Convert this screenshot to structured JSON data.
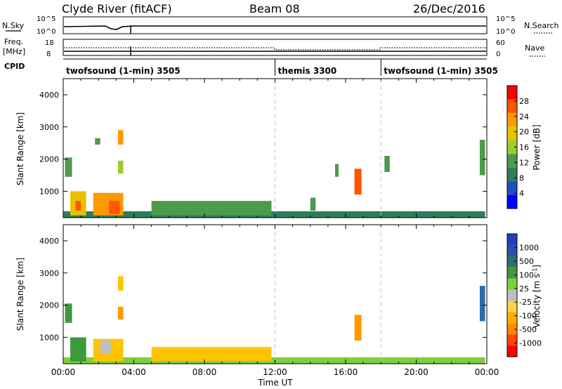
{
  "header": {
    "station": "Clyde River (fitACF)",
    "beam": "Beam 08",
    "date": "26/Dec/2016"
  },
  "noise_panel": {
    "left_label": "N.Sky",
    "right_label": "N.Search",
    "left_ticks": [
      "10^5",
      "10^0"
    ],
    "right_ticks": [
      "10^5",
      "10^0"
    ]
  },
  "freq_panel": {
    "left_label_1": "Freq.",
    "left_label_2": "[MHz]",
    "left_ticks": [
      "18",
      "8"
    ],
    "right_label": "Nave",
    "right_ticks": [
      "60",
      "0"
    ]
  },
  "cpid_panel": {
    "label": "CPID",
    "segments": [
      {
        "name": "twofsound (1-min) 3505",
        "start_hour": 0
      },
      {
        "name": "themis 3300",
        "start_hour": 12
      },
      {
        "name": "twofsound (1-min) 3505",
        "start_hour": 18
      }
    ]
  },
  "colors": {
    "power_scale": [
      "#0000ff",
      "#1f4fbf",
      "#2e7d5b",
      "#4c9a4c",
      "#9acd32",
      "#e6c200",
      "#ff9900",
      "#ff5500",
      "#ff0000"
    ],
    "velocity_scale": [
      "#ff0000",
      "#ff4400",
      "#ff8800",
      "#ffb000",
      "#ffd24d",
      "#bfbfbf",
      "#7fce3c",
      "#3c9a3c",
      "#2e6e6e",
      "#2c4fa8",
      "#1f3fbf"
    ]
  },
  "chart_data": [
    {
      "type": "heatmap",
      "name": "power",
      "title": "",
      "xlabel": "Time UT",
      "ylabel": "Slant Range [km]",
      "xlim": [
        0,
        24
      ],
      "ylim": [
        180,
        4500
      ],
      "x_ticks": [
        "00:00",
        "04:00",
        "08:00",
        "12:00",
        "16:00",
        "20:00",
        "00:00"
      ],
      "y_ticks": [
        "1000",
        "2000",
        "3000",
        "4000"
      ],
      "colorbar_label": "Power [dB]",
      "colorbar_ticks": [
        "4",
        "8",
        "12",
        "16",
        "20",
        "24",
        "28"
      ],
      "colorbar_range": [
        0,
        32
      ],
      "regions": [
        {
          "t0": 0.0,
          "t1": 23.9,
          "r0": 180,
          "r1": 380,
          "value": 10
        },
        {
          "t0": 0.4,
          "t1": 1.3,
          "r0": 250,
          "r1": 1000,
          "value": 20
        },
        {
          "t0": 1.7,
          "t1": 3.4,
          "r0": 250,
          "r1": 950,
          "value": 22
        },
        {
          "t0": 2.6,
          "t1": 3.2,
          "r0": 300,
          "r1": 700,
          "value": 28
        },
        {
          "t0": 0.7,
          "t1": 1.0,
          "r0": 400,
          "r1": 700,
          "value": 28
        },
        {
          "t0": 0.1,
          "t1": 0.5,
          "r0": 1450,
          "r1": 2050,
          "value": 14
        },
        {
          "t0": 3.1,
          "t1": 3.4,
          "r0": 1550,
          "r1": 1950,
          "value": 16
        },
        {
          "t0": 3.1,
          "t1": 3.4,
          "r0": 2450,
          "r1": 2900,
          "value": 22
        },
        {
          "t0": 1.8,
          "t1": 2.1,
          "r0": 2450,
          "r1": 2650,
          "value": 12
        },
        {
          "t0": 16.5,
          "t1": 16.9,
          "r0": 900,
          "r1": 1700,
          "value": 26
        },
        {
          "t0": 15.4,
          "t1": 15.6,
          "r0": 1450,
          "r1": 1850,
          "value": 14
        },
        {
          "t0": 14.0,
          "t1": 14.3,
          "r0": 400,
          "r1": 800,
          "value": 14
        },
        {
          "t0": 18.2,
          "t1": 18.5,
          "r0": 1600,
          "r1": 2100,
          "value": 12
        },
        {
          "t0": 23.6,
          "t1": 23.9,
          "r0": 1500,
          "r1": 2600,
          "value": 12
        },
        {
          "t0": 5.0,
          "t1": 11.8,
          "r0": 250,
          "r1": 700,
          "value": 14
        }
      ]
    },
    {
      "type": "heatmap",
      "name": "velocity",
      "title": "",
      "xlabel": "Time UT",
      "ylabel": "Slant Range [km]",
      "xlim": [
        0,
        24
      ],
      "ylim": [
        180,
        4500
      ],
      "x_ticks": [
        "00:00",
        "04:00",
        "08:00",
        "12:00",
        "16:00",
        "20:00",
        "00:00"
      ],
      "y_ticks": [
        "1000",
        "2000",
        "3000",
        "4000"
      ],
      "colorbar_label": "Velocity [m s^-1]",
      "colorbar_ticks": [
        "-1000",
        "-500",
        "-100",
        "-25",
        "25",
        "100",
        "500",
        "1000"
      ],
      "colorbar_range": [
        -1000,
        1000
      ],
      "regions": [
        {
          "t0": 0.0,
          "t1": 23.9,
          "r0": 180,
          "r1": 380,
          "value": 40
        },
        {
          "t0": 0.4,
          "t1": 1.3,
          "r0": 250,
          "r1": 1000,
          "value": 150
        },
        {
          "t0": 1.7,
          "t1": 3.4,
          "r0": 250,
          "r1": 950,
          "value": -80
        },
        {
          "t0": 2.1,
          "t1": 2.7,
          "r0": 500,
          "r1": 900,
          "value": 0
        },
        {
          "t0": 16.5,
          "t1": 16.9,
          "r0": 900,
          "r1": 1700,
          "value": -250
        },
        {
          "t0": 23.6,
          "t1": 23.9,
          "r0": 1500,
          "r1": 2600,
          "value": 800
        },
        {
          "t0": 0.1,
          "t1": 0.5,
          "r0": 1450,
          "r1": 2050,
          "value": 400
        },
        {
          "t0": 3.1,
          "t1": 3.4,
          "r0": 1550,
          "r1": 1950,
          "value": -150
        },
        {
          "t0": 3.1,
          "t1": 3.4,
          "r0": 2450,
          "r1": 2900,
          "value": -80
        },
        {
          "t0": 5.0,
          "t1": 11.8,
          "r0": 250,
          "r1": 700,
          "value": -50
        }
      ]
    }
  ]
}
